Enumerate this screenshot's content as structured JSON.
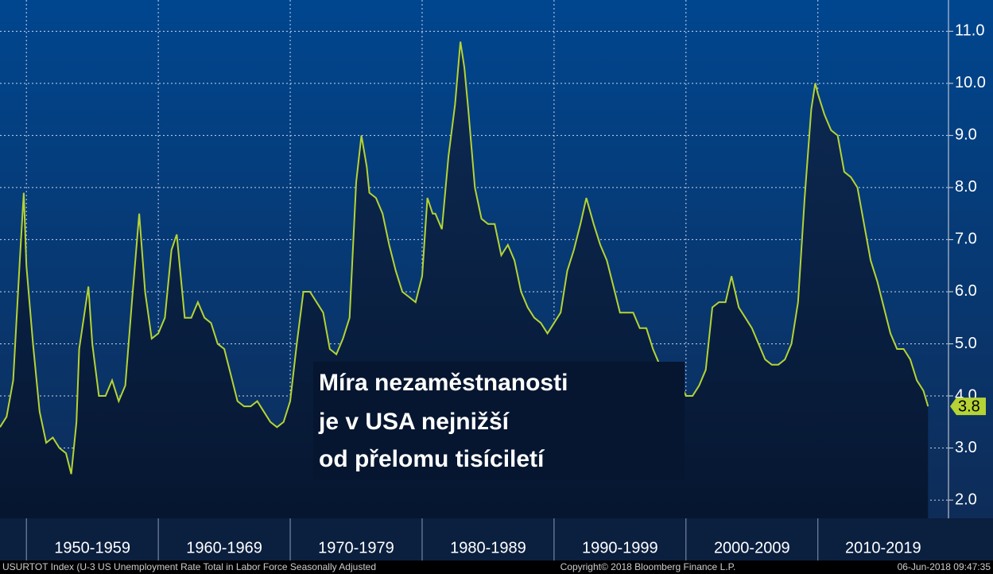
{
  "chart_data": {
    "type": "line",
    "x": [
      1948.0,
      1948.5,
      1949.0,
      1949.5,
      1949.8,
      1950.0,
      1950.5,
      1951.0,
      1951.5,
      1952.0,
      1952.5,
      1953.0,
      1953.4,
      1953.8,
      1954.0,
      1954.7,
      1955.0,
      1955.5,
      1956.0,
      1956.5,
      1957.0,
      1957.5,
      1958.0,
      1958.55,
      1959.0,
      1959.5,
      1960.0,
      1960.5,
      1961.0,
      1961.4,
      1962.0,
      1962.5,
      1963.0,
      1963.5,
      1964.0,
      1964.5,
      1965.0,
      1965.5,
      1966.0,
      1966.5,
      1967.0,
      1967.5,
      1968.0,
      1968.5,
      1969.0,
      1969.5,
      1970.0,
      1970.5,
      1971.0,
      1971.5,
      1972.0,
      1972.5,
      1973.0,
      1973.5,
      1974.0,
      1974.5,
      1975.0,
      1975.4,
      1975.8,
      1976.0,
      1976.5,
      1977.0,
      1977.5,
      1978.0,
      1978.5,
      1979.0,
      1979.5,
      1980.0,
      1980.4,
      1980.8,
      1981.0,
      1981.5,
      1982.0,
      1982.5,
      1982.9,
      1983.2,
      1983.5,
      1984.0,
      1984.5,
      1985.0,
      1985.5,
      1986.0,
      1986.5,
      1987.0,
      1987.5,
      1988.0,
      1988.5,
      1989.0,
      1989.5,
      1990.0,
      1990.5,
      1991.0,
      1991.5,
      1992.0,
      1992.45,
      1993.0,
      1993.5,
      1994.0,
      1994.5,
      1995.0,
      1995.5,
      1996.0,
      1996.5,
      1997.0,
      1997.5,
      1998.0,
      1998.5,
      1999.0,
      1999.5,
      2000.0,
      2000.5,
      2001.0,
      2001.5,
      2002.0,
      2002.5,
      2003.0,
      2003.45,
      2004.0,
      2004.5,
      2005.0,
      2005.5,
      2006.0,
      2006.5,
      2007.0,
      2007.5,
      2008.0,
      2008.5,
      2009.0,
      2009.5,
      2009.8,
      2010.0,
      2010.5,
      2011.0,
      2011.5,
      2012.0,
      2012.5,
      2013.0,
      2013.5,
      2014.0,
      2014.5,
      2015.0,
      2015.5,
      2016.0,
      2016.5,
      2017.0,
      2017.5,
      2018.0,
      2018.35
    ],
    "series": [
      {
        "color": "#b5d334",
        "values": [
          3.4,
          3.6,
          4.3,
          6.6,
          7.9,
          6.5,
          5.0,
          3.7,
          3.1,
          3.2,
          3.0,
          2.9,
          2.5,
          3.5,
          4.9,
          6.1,
          5.0,
          4.0,
          4.0,
          4.3,
          3.9,
          4.2,
          5.8,
          7.5,
          6.0,
          5.1,
          5.2,
          5.5,
          6.8,
          7.1,
          5.5,
          5.5,
          5.8,
          5.5,
          5.4,
          5.0,
          4.9,
          4.4,
          3.9,
          3.8,
          3.8,
          3.9,
          3.7,
          3.5,
          3.4,
          3.5,
          3.9,
          5.0,
          6.0,
          6.0,
          5.8,
          5.6,
          4.9,
          4.8,
          5.1,
          5.5,
          8.1,
          9.0,
          8.4,
          7.9,
          7.8,
          7.5,
          6.9,
          6.4,
          6.0,
          5.9,
          5.8,
          6.3,
          7.8,
          7.5,
          7.5,
          7.2,
          8.6,
          9.6,
          10.8,
          10.3,
          9.5,
          8.0,
          7.4,
          7.3,
          7.3,
          6.7,
          6.9,
          6.6,
          6.0,
          5.7,
          5.5,
          5.4,
          5.2,
          5.4,
          5.6,
          6.4,
          6.8,
          7.3,
          7.8,
          7.3,
          6.9,
          6.6,
          6.1,
          5.6,
          5.6,
          5.6,
          5.3,
          5.3,
          4.9,
          4.6,
          4.5,
          4.3,
          4.3,
          4.0,
          4.0,
          4.2,
          4.5,
          5.7,
          5.8,
          5.8,
          6.3,
          5.7,
          5.5,
          5.3,
          5.0,
          4.7,
          4.6,
          4.6,
          4.7,
          5.0,
          5.8,
          7.8,
          9.5,
          10.0,
          9.8,
          9.4,
          9.1,
          9.0,
          8.3,
          8.2,
          8.0,
          7.3,
          6.6,
          6.2,
          5.7,
          5.2,
          4.9,
          4.9,
          4.7,
          4.3,
          4.1,
          3.8
        ]
      }
    ],
    "xlim": [
      1948,
      2019.9
    ],
    "xticks": [
      {
        "value": 1950,
        "label": "1950-1959"
      },
      {
        "value": 1960,
        "label": "1960-1969"
      },
      {
        "value": 1970,
        "label": "1970-1979"
      },
      {
        "value": 1980,
        "label": "1980-1989"
      },
      {
        "value": 1990,
        "label": "1990-1999"
      },
      {
        "value": 2000,
        "label": "2000-2009"
      },
      {
        "value": 2010,
        "label": "2010-2019"
      }
    ],
    "ylim": [
      1.65,
      11.6
    ],
    "yticks": [
      {
        "value": 2,
        "label": "2.0"
      },
      {
        "value": 3,
        "label": "3.0"
      },
      {
        "value": 4,
        "label": "4.0"
      },
      {
        "value": 5,
        "label": "5.0"
      },
      {
        "value": 6,
        "label": "6.0"
      },
      {
        "value": 7,
        "label": "7.0"
      },
      {
        "value": 8,
        "label": "8.0"
      },
      {
        "value": 9,
        "label": "9.0"
      },
      {
        "value": 10,
        "label": "10.0"
      },
      {
        "value": 11,
        "label": "11.0"
      }
    ],
    "grid": true,
    "annotation": [
      "Míra nezaměstnanosti",
      "je v USA nejnižší",
      "od přelomu tisíciletí"
    ],
    "footer": {
      "left": "USURTOT Index (U-3 US Unemployment Rate Total in Labor Force Seasonally Adjusted",
      "center": "Copyright© 2018 Bloomberg Finance L.P.",
      "right": "06-Jun-2018 09:47:35"
    }
  }
}
